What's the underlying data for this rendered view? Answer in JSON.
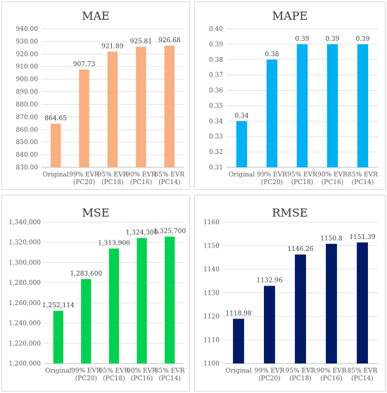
{
  "chart_data": [
    {
      "type": "bar",
      "title": "MAE",
      "categories": [
        "Original",
        "99% EVR (PC20)",
        "95% EVR (PC18)",
        "90% EVR (PC16)",
        "85% EVR (PC14)"
      ],
      "values": [
        864.65,
        907.73,
        921.89,
        925.81,
        926.68
      ],
      "value_labels": [
        "864.65",
        "907.73",
        "921.89",
        "925.81",
        "926.68"
      ],
      "ylim": [
        830,
        940
      ],
      "yticks": [
        830,
        840,
        850,
        860,
        870,
        880,
        890,
        900,
        910,
        920,
        930,
        940
      ],
      "ytick_labels": [
        "830.00",
        "840.00",
        "850.00",
        "860.00",
        "870.00",
        "880.00",
        "890.00",
        "900.00",
        "910.00",
        "920.00",
        "930.00",
        "940.00"
      ],
      "color": "#F8AF82",
      "grid": true,
      "xlabel": "",
      "ylabel": ""
    },
    {
      "type": "bar",
      "title": "MAPE",
      "categories": [
        "Original",
        "99% EVR (PC20)",
        "95% EVR (PC18)",
        "90% EVR (PC16)",
        "85% EVR (PC14)"
      ],
      "values": [
        0.34,
        0.38,
        0.39,
        0.39,
        0.39
      ],
      "value_labels": [
        "0.34",
        "0.38",
        "0.39",
        "0.39",
        "0.39"
      ],
      "ylim": [
        0.31,
        0.4
      ],
      "yticks": [
        0.31,
        0.32,
        0.33,
        0.34,
        0.35,
        0.36,
        0.37,
        0.38,
        0.39,
        0.4
      ],
      "ytick_labels": [
        "0.31",
        "0.32",
        "0.33",
        "0.34",
        "0.35",
        "0.36",
        "0.37",
        "0.38",
        "0.39",
        "0.40"
      ],
      "color": "#00B0F0",
      "grid": true,
      "xlabel": "",
      "ylabel": ""
    },
    {
      "type": "bar",
      "title": "MSE",
      "categories": [
        "Original",
        "99% EVR (PC20)",
        "95% EVR (PC18)",
        "90% EVR (PC16)",
        "85% EVR (PC14)"
      ],
      "values": [
        1252114,
        1283600,
        1313900,
        1324300,
        1325700
      ],
      "value_labels": [
        "1,252,114",
        "1,283,600",
        "1,313,900",
        "1,324,300",
        "1,325,700"
      ],
      "ylim": [
        1200000,
        1340000
      ],
      "yticks": [
        1200000,
        1220000,
        1240000,
        1260000,
        1280000,
        1300000,
        1320000,
        1340000
      ],
      "ytick_labels": [
        "1,200,000",
        "1,220,000",
        "1,240,000",
        "1,260,000",
        "1,280,000",
        "1,300,000",
        "1,320,000",
        "1,340,000"
      ],
      "color": "#00D050",
      "grid": true,
      "xlabel": "",
      "ylabel": ""
    },
    {
      "type": "bar",
      "title": "RMSE",
      "categories": [
        "Original",
        "99% EVR (PC20)",
        "95% EVR (PC18)",
        "90% EVR (PC16)",
        "85% EVR (PC14)"
      ],
      "values": [
        1118.98,
        1132.96,
        1146.26,
        1150.8,
        1151.39
      ],
      "value_labels": [
        "1118.98",
        "1132.96",
        "1146.26",
        "1150.8",
        "1151.39"
      ],
      "ylim": [
        1100,
        1160
      ],
      "yticks": [
        1100,
        1110,
        1120,
        1130,
        1140,
        1150,
        1160
      ],
      "ytick_labels": [
        "1100",
        "1110",
        "1120",
        "1130",
        "1140",
        "1150",
        "1160"
      ],
      "color": "#001A66",
      "grid": true,
      "xlabel": "",
      "ylabel": ""
    }
  ]
}
